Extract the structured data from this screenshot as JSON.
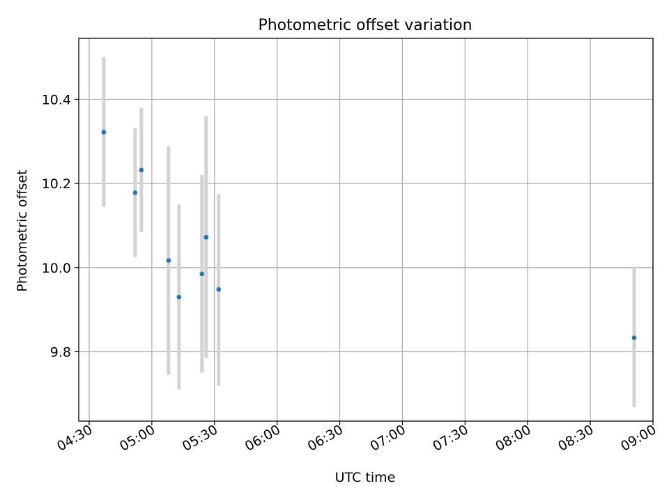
{
  "chart_data": {
    "type": "scatter",
    "title": "Photometric offset variation",
    "xlabel": "UTC time",
    "ylabel": "Photometric offset",
    "x_range": [
      "04:25",
      "09:00"
    ],
    "ylim": [
      9.635,
      10.545
    ],
    "grid": true,
    "x_ticks": [
      "04:30",
      "05:00",
      "05:30",
      "06:00",
      "06:30",
      "07:00",
      "07:30",
      "08:00",
      "08:30",
      "09:00"
    ],
    "y_ticks": [
      "9.8",
      "10.0",
      "10.2",
      "10.4"
    ],
    "point_color": "#1f77b4",
    "errorbar_color": "#d3d3d3",
    "points": [
      {
        "time": "04:37",
        "y": 10.322,
        "ylow": 10.145,
        "yhigh": 10.5
      },
      {
        "time": "04:52",
        "y": 10.178,
        "ylow": 10.025,
        "yhigh": 10.332
      },
      {
        "time": "04:55",
        "y": 10.232,
        "ylow": 10.085,
        "yhigh": 10.38
      },
      {
        "time": "05:08",
        "y": 10.017,
        "ylow": 9.745,
        "yhigh": 10.288
      },
      {
        "time": "05:13",
        "y": 9.93,
        "ylow": 9.71,
        "yhigh": 10.15
      },
      {
        "time": "05:24",
        "y": 9.985,
        "ylow": 9.75,
        "yhigh": 10.22
      },
      {
        "time": "05:26",
        "y": 10.072,
        "ylow": 9.785,
        "yhigh": 10.36
      },
      {
        "time": "05:32",
        "y": 9.948,
        "ylow": 9.72,
        "yhigh": 10.175
      },
      {
        "time": "08:51",
        "y": 9.833,
        "ylow": 9.668,
        "yhigh": 10.002
      }
    ]
  }
}
